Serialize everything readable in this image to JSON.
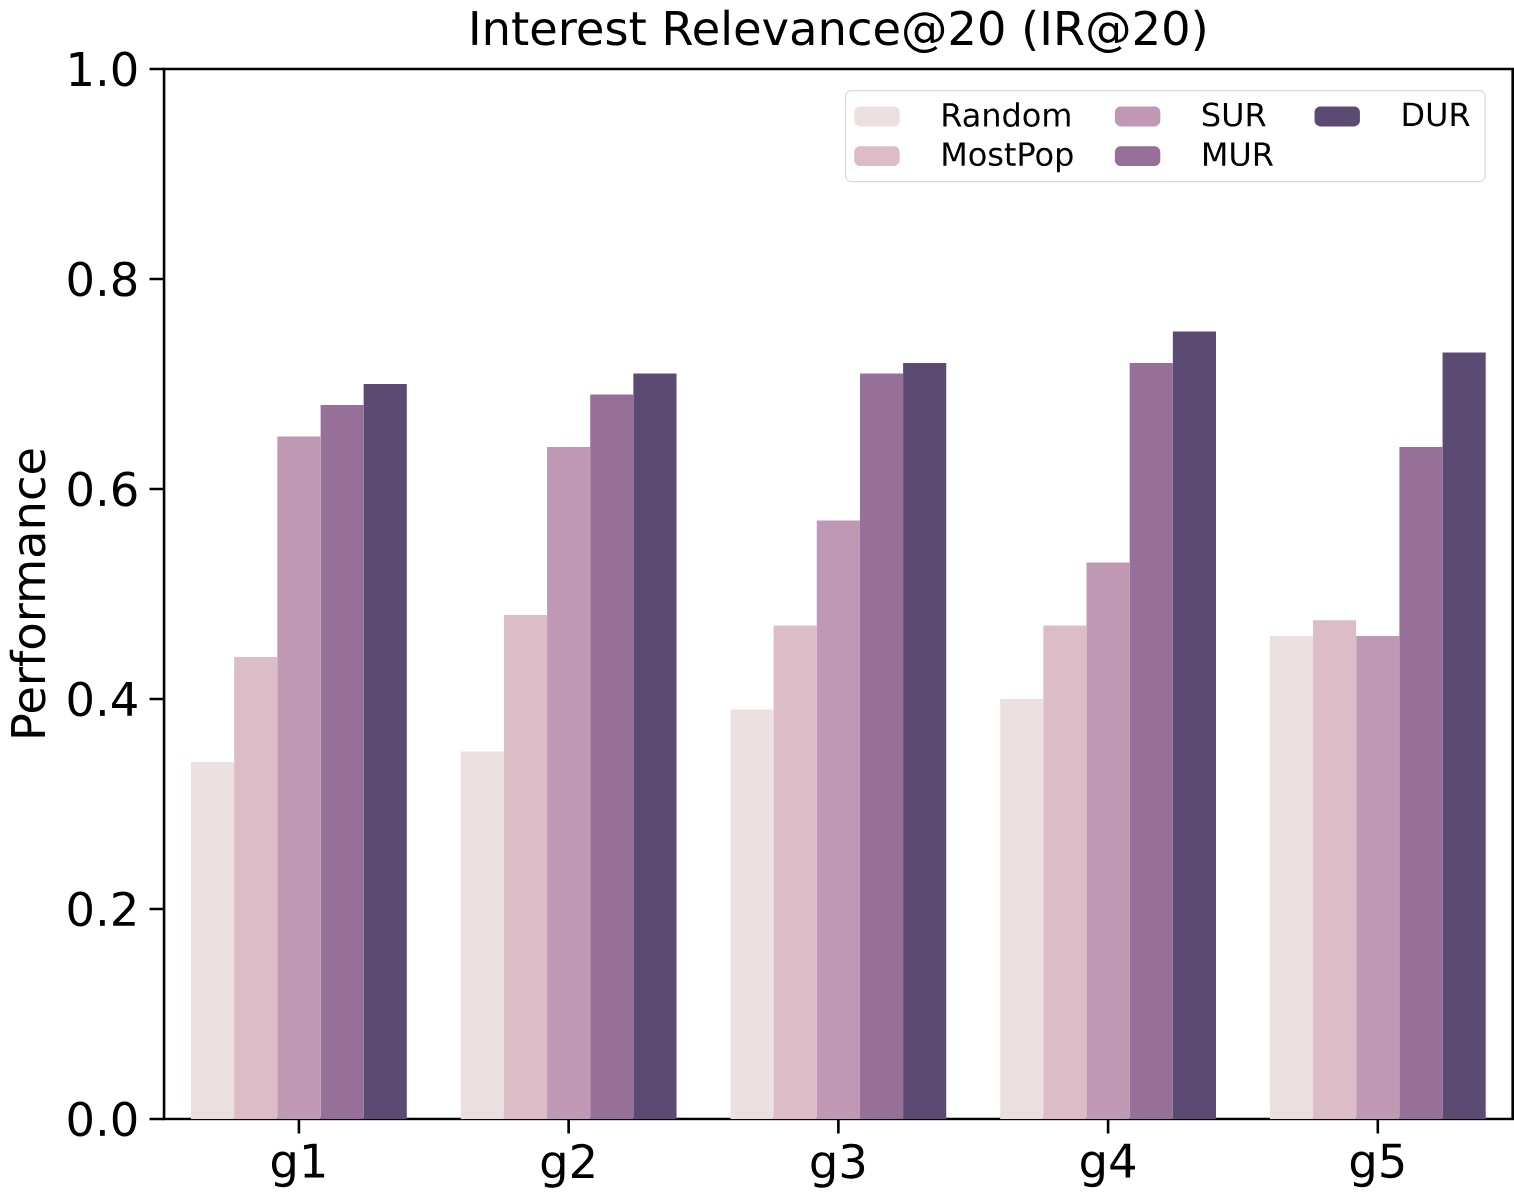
{
  "chart_data": {
    "type": "bar",
    "title": "Interest Relevance@20 (IR@20)",
    "ylabel": "Performance",
    "categories": [
      "g1",
      "g2",
      "g3",
      "g4",
      "g5"
    ],
    "series": [
      {
        "name": "Random",
        "color": "#ecdfe0",
        "values": [
          0.34,
          0.35,
          0.39,
          0.4,
          0.46
        ]
      },
      {
        "name": "MostPop",
        "color": "#dcbcc6",
        "values": [
          0.44,
          0.48,
          0.47,
          0.47,
          0.475
        ]
      },
      {
        "name": "SUR",
        "color": "#bf98b3",
        "values": [
          0.65,
          0.64,
          0.57,
          0.53,
          0.46
        ]
      },
      {
        "name": "MUR",
        "color": "#967099",
        "values": [
          0.68,
          0.69,
          0.71,
          0.72,
          0.64
        ]
      },
      {
        "name": "DUR",
        "color": "#5b4a72",
        "values": [
          0.7,
          0.71,
          0.72,
          0.75,
          0.73
        ]
      }
    ],
    "ylim": [
      0,
      1
    ],
    "yticks": [
      {
        "value": 0,
        "label": "0.0"
      },
      {
        "value": 0.2,
        "label": "0.2"
      },
      {
        "value": 0.4,
        "label": "0.4"
      },
      {
        "value": 0.6,
        "label": "0.6"
      },
      {
        "value": 0.8,
        "label": "0.8"
      },
      {
        "value": 1,
        "label": "1.0"
      }
    ],
    "grid": false,
    "legend": "top right"
  }
}
